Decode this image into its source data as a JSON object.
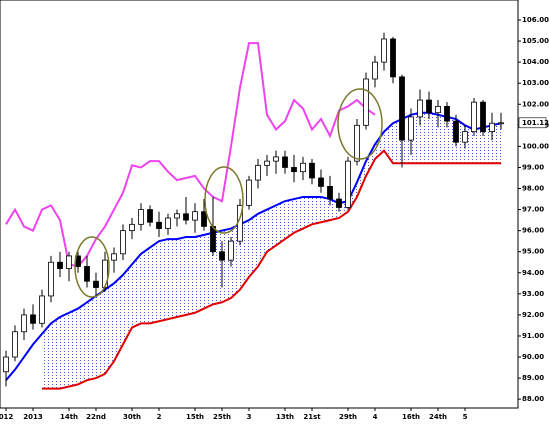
{
  "chart_data": {
    "type": "candlestick",
    "categories": [
      "012",
      null,
      null,
      "2013",
      null,
      null,
      null,
      "14th",
      null,
      null,
      "22nd",
      null,
      null,
      null,
      "30th",
      null,
      null,
      "2",
      null,
      null,
      null,
      "15th",
      null,
      null,
      "25th",
      null,
      null,
      "3",
      null,
      null,
      null,
      "13th",
      null,
      null,
      "21st",
      null,
      null,
      null,
      "29th",
      null,
      null,
      "4",
      null,
      null,
      null,
      "16th",
      null,
      null,
      "24th",
      null,
      null,
      "5",
      null,
      null,
      null,
      null
    ],
    "open": [
      89.3,
      90.0,
      91.2,
      92.0,
      91.6,
      92.9,
      94.5,
      94.2,
      94.8,
      94.3,
      93.6,
      93.3,
      94.6,
      94.9,
      96.0,
      96.3,
      97.0,
      96.4,
      96.1,
      96.6,
      96.8,
      96.5,
      96.9,
      96.2,
      95.0,
      94.6,
      95.5,
      97.2,
      98.4,
      99.1,
      99.3,
      99.5,
      99.0,
      98.8,
      99.2,
      98.5,
      98.1,
      97.5,
      97.1,
      99.3,
      101.0,
      103.2,
      104.0,
      105.1,
      103.3,
      100.3,
      101.4,
      102.2,
      101.6,
      101.9,
      101.2,
      100.2,
      100.7,
      102.1,
      100.7,
      101.1
    ],
    "high": [
      90.3,
      91.5,
      92.3,
      92.5,
      93.2,
      94.8,
      95.0,
      95.0,
      95.1,
      94.8,
      94.0,
      95.0,
      95.2,
      96.3,
      96.6,
      97.3,
      97.2,
      96.9,
      96.8,
      97.0,
      97.6,
      97.3,
      97.5,
      97.6,
      95.5,
      95.7,
      97.5,
      98.6,
      99.4,
      99.6,
      99.8,
      99.8,
      99.6,
      99.5,
      99.4,
      98.9,
      98.6,
      97.8,
      99.5,
      101.3,
      103.5,
      104.3,
      105.4,
      105.2,
      103.4,
      101.8,
      102.7,
      102.6,
      102.2,
      102.1,
      101.5,
      101.0,
      102.3,
      102.2,
      101.6,
      101.6
    ],
    "low": [
      88.6,
      89.8,
      90.8,
      91.3,
      91.4,
      92.6,
      93.8,
      93.6,
      94.0,
      93.3,
      92.9,
      93.1,
      94.0,
      94.6,
      95.6,
      96.0,
      96.2,
      95.7,
      95.8,
      96.2,
      96.3,
      95.9,
      96.0,
      94.8,
      93.3,
      94.3,
      95.3,
      97.0,
      98.0,
      98.6,
      98.7,
      98.7,
      98.3,
      98.4,
      98.2,
      97.8,
      97.2,
      96.9,
      97.0,
      99.1,
      100.8,
      102.8,
      103.6,
      103.0,
      99.0,
      99.6,
      101.0,
      101.3,
      100.9,
      100.9,
      100.0,
      99.9,
      100.5,
      100.5,
      100.3,
      100.8
    ],
    "close": [
      90.0,
      91.2,
      92.0,
      91.6,
      92.9,
      94.5,
      94.2,
      94.8,
      94.3,
      93.6,
      93.3,
      94.6,
      94.9,
      96.0,
      96.3,
      97.0,
      96.4,
      96.1,
      96.6,
      96.8,
      96.5,
      96.9,
      96.2,
      95.0,
      94.6,
      95.5,
      97.2,
      98.4,
      99.1,
      99.3,
      99.5,
      99.0,
      98.8,
      99.2,
      98.5,
      98.1,
      97.5,
      97.1,
      99.3,
      101.0,
      103.2,
      104.0,
      105.1,
      103.3,
      100.3,
      101.4,
      102.2,
      101.6,
      101.9,
      101.2,
      100.2,
      100.7,
      102.1,
      100.7,
      101.1,
      101.12
    ],
    "up_color": "#ffffff",
    "down_color": "#000000",
    "lines": [
      {
        "color": "#0000ff",
        "values": [
          88.9,
          89.4,
          90.0,
          90.6,
          91.1,
          91.6,
          91.9,
          92.1,
          92.3,
          92.6,
          92.9,
          93.2,
          93.5,
          93.9,
          94.4,
          94.9,
          95.2,
          95.5,
          95.6,
          95.6,
          95.7,
          95.7,
          95.8,
          95.9,
          96.0,
          96.1,
          96.3,
          96.5,
          96.8,
          97.0,
          97.2,
          97.4,
          97.5,
          97.6,
          97.6,
          97.6,
          97.5,
          97.3,
          97.4,
          98.3,
          99.3,
          100.1,
          100.7,
          101.1,
          101.3,
          101.5,
          101.6,
          101.6,
          101.5,
          101.4,
          101.3,
          101.0,
          100.8,
          100.9,
          101.0,
          101.1
        ]
      },
      {
        "color": "#e00000",
        "values": [
          null,
          null,
          null,
          null,
          88.5,
          88.5,
          88.5,
          88.6,
          88.7,
          88.9,
          89.0,
          89.2,
          89.8,
          90.6,
          91.4,
          91.6,
          91.6,
          91.7,
          91.8,
          91.9,
          92.0,
          92.1,
          92.3,
          92.5,
          92.6,
          92.8,
          93.2,
          93.8,
          94.3,
          95.0,
          95.3,
          95.6,
          95.9,
          96.1,
          96.3,
          96.4,
          96.5,
          96.6,
          96.9,
          97.6,
          98.6,
          99.4,
          99.8,
          99.2,
          99.2,
          99.2,
          99.2,
          99.2,
          99.2,
          99.2,
          99.2,
          99.2,
          99.2,
          99.2,
          99.2,
          99.2
        ]
      },
      {
        "color": "#ee44ee",
        "values": [
          96.3,
          97.0,
          96.2,
          96.0,
          97.0,
          97.2,
          96.5,
          94.4,
          94.3,
          94.8,
          95.6,
          96.2,
          97.0,
          97.8,
          99.1,
          99.0,
          99.3,
          99.3,
          98.8,
          98.4,
          98.5,
          98.6,
          98.0,
          97.6,
          97.4,
          100.0,
          102.8,
          104.9,
          104.9,
          101.5,
          100.8,
          101.2,
          102.2,
          101.8,
          100.8,
          101.3,
          100.5,
          101.7,
          101.9,
          102.2,
          101.8,
          101.5,
          null,
          null,
          null,
          null,
          null,
          null,
          null,
          null,
          null,
          null,
          null,
          null,
          null,
          null
        ]
      }
    ],
    "cloud_color": "#3344cc",
    "ylim": [
      87.58,
      106.95
    ],
    "yticks": [
      {
        "value": 88,
        "label": "88.00"
      },
      {
        "value": 89,
        "label": "89.00"
      },
      {
        "value": 90,
        "label": "90.00"
      },
      {
        "value": 91,
        "label": "91.00"
      },
      {
        "value": 92,
        "label": "92.00"
      },
      {
        "value": 93,
        "label": "93.00"
      },
      {
        "value": 94,
        "label": "94.00"
      },
      {
        "value": 95,
        "label": "95.00"
      },
      {
        "value": 96,
        "label": "96.00"
      },
      {
        "value": 97,
        "label": "97.00"
      },
      {
        "value": 98,
        "label": "98.00"
      },
      {
        "value": 99,
        "label": "99.00"
      },
      {
        "value": 100,
        "label": "100.00"
      },
      {
        "value": 101,
        "label": "101.00"
      },
      {
        "value": 102,
        "label": "102.00"
      },
      {
        "value": 103,
        "label": "103.00"
      },
      {
        "value": 104,
        "label": "104.00"
      },
      {
        "value": 105,
        "label": "105.00"
      },
      {
        "value": 106,
        "label": "106.00"
      }
    ],
    "price_marker": {
      "value": 101.12,
      "label": "101.12"
    },
    "grid": false
  }
}
